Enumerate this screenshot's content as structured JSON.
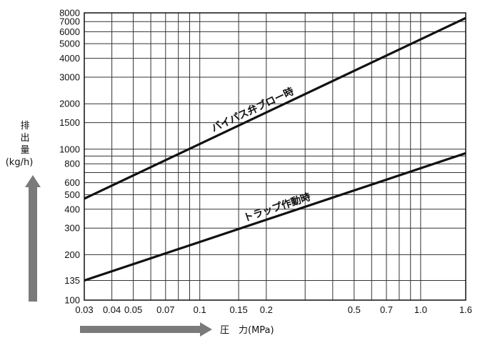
{
  "chart_data": {
    "type": "line",
    "x_scale": "log",
    "y_scale": "log",
    "xlim": [
      0.03,
      1.6
    ],
    "ylim": [
      100,
      8000
    ],
    "grid": true,
    "xlabel": "圧　力(MPa)",
    "ylabel_lines": [
      "排",
      "出",
      "量",
      "(kg/h)"
    ],
    "x_ticks": [
      0.03,
      0.04,
      0.05,
      0.07,
      0.1,
      0.15,
      0.2,
      0.5,
      0.7,
      1.0,
      1.6
    ],
    "x_tick_labels": [
      "0.03",
      "0.04",
      "0.05",
      "0.07",
      "0.1",
      "0.15",
      "0.2",
      "0.5",
      "0.7",
      "1.0",
      "1.6"
    ],
    "x_grid": [
      0.03,
      0.04,
      0.05,
      0.06,
      0.07,
      0.08,
      0.09,
      0.1,
      0.15,
      0.2,
      0.3,
      0.4,
      0.5,
      0.6,
      0.7,
      0.8,
      0.9,
      1.0,
      1.6
    ],
    "y_ticks": [
      100,
      135,
      200,
      300,
      400,
      500,
      600,
      800,
      1000,
      1500,
      2000,
      3000,
      4000,
      5000,
      6000,
      7000,
      8000
    ],
    "y_tick_labels": [
      "100",
      "135",
      "200",
      "300",
      "400",
      "500",
      "600",
      "800",
      "1000",
      "1500",
      "2000",
      "3000",
      "4000",
      "5000",
      "6000",
      "7000",
      "8000"
    ],
    "y_grid": [
      100,
      135,
      200,
      300,
      400,
      500,
      600,
      700,
      800,
      900,
      1000,
      1500,
      2000,
      3000,
      4000,
      5000,
      6000,
      7000,
      8000
    ],
    "series": [
      {
        "name": "バイパス弁ブロー時",
        "x": [
          0.03,
          1.6
        ],
        "y": [
          470,
          7400
        ]
      },
      {
        "name": "トラップ作動時",
        "x": [
          0.03,
          1.6
        ],
        "y": [
          135,
          940
        ]
      }
    ],
    "colors": {
      "line": "#111111",
      "grid": "#333333",
      "arrow": "#7a7a7a"
    }
  }
}
